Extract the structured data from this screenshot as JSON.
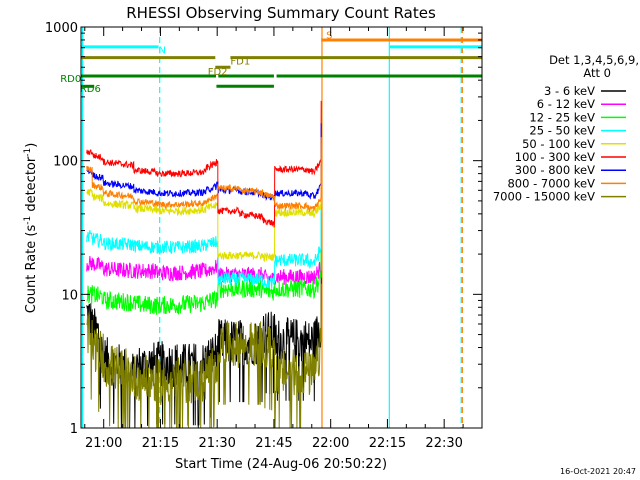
{
  "chart_data": {
    "type": "line",
    "title": "RHESSI Observing Summary Count Rates",
    "xlabel": "Start Time (24-Aug-06 20:50:22)",
    "ylabel_main": "Count Rate (s",
    "ylabel_sup1": "-1",
    "ylabel_mid": " detector",
    "ylabel_sup2": "-1",
    "ylabel_end": ")",
    "y_scale": "log",
    "ylim": [
      1,
      1000
    ],
    "xlim_minutes": [
      -6,
      100
    ],
    "y_ticks": [
      {
        "value": 1,
        "label": "1"
      },
      {
        "value": 10,
        "label": "10"
      },
      {
        "value": 100,
        "label": "100"
      },
      {
        "value": 1000,
        "label": "1000"
      }
    ],
    "x_ticks": [
      {
        "t": 0,
        "label": "21:00"
      },
      {
        "t": 15,
        "label": "21:15"
      },
      {
        "t": 30,
        "label": "21:30"
      },
      {
        "t": 45,
        "label": "21:45"
      },
      {
        "t": 60,
        "label": "22:00"
      },
      {
        "t": 75,
        "label": "22:15"
      },
      {
        "t": 90,
        "label": "22:30"
      }
    ],
    "legend_header": [
      "Det 1,3,4,5,6,9,",
      "Att 0"
    ],
    "timestamp": "16-Oct-2021 20:47",
    "series": [
      {
        "name": "3 - 6 keV",
        "color": "#000000",
        "segments": [
          [
            -4.5,
            7.3,
            6.0
          ],
          [
            -3,
            5.5,
            5.0
          ],
          [
            -1,
            4.0,
            3.5
          ],
          [
            0,
            3.3,
            2.5
          ],
          [
            8,
            2.8,
            3.0
          ],
          [
            14,
            3.0,
            3.0
          ],
          [
            20,
            2.9,
            3.0
          ],
          [
            27,
            3.2,
            3.6
          ],
          [
            29.8,
            3.2,
            3.6
          ],
          [
            30.2,
            4.4,
            4.4
          ],
          [
            42,
            5.2,
            5.0
          ],
          [
            44.8,
            5.2,
            5.0
          ],
          [
            45.2,
            4.5,
            4.5
          ],
          [
            54,
            4.3,
            4.5
          ],
          [
            56,
            4.6,
            6.0
          ],
          [
            57.5,
            15,
            15
          ]
        ],
        "noise": 0.35,
        "spike_to_floor": true
      },
      {
        "name": "6 - 12 keV",
        "color": "#ff00ff",
        "segments": [
          [
            -4.5,
            17,
            17
          ],
          [
            -3,
            17,
            16
          ],
          [
            0,
            15.5,
            15
          ],
          [
            8,
            15,
            15
          ],
          [
            14,
            14.5,
            14.5
          ],
          [
            20,
            14.5,
            15
          ],
          [
            27,
            15,
            16
          ],
          [
            29.8,
            16,
            16.5
          ],
          [
            30.2,
            14,
            14
          ],
          [
            42,
            13.5,
            13
          ],
          [
            44.8,
            13,
            13
          ],
          [
            45.2,
            13.5,
            13.5
          ],
          [
            54,
            13.5,
            13.5
          ],
          [
            56,
            14,
            16
          ],
          [
            57.5,
            40,
            40
          ]
        ],
        "noise": 0.12
      },
      {
        "name": "12 - 25 keV",
        "color": "#00ff00",
        "segments": [
          [
            -4.5,
            10,
            10
          ],
          [
            -3,
            10,
            9.5
          ],
          [
            0,
            9,
            8.7
          ],
          [
            8,
            8.5,
            8.2
          ],
          [
            14,
            8.3,
            8.3
          ],
          [
            20,
            8.4,
            8.6
          ],
          [
            27,
            8.8,
            9.2
          ],
          [
            29.8,
            9.2,
            9.5
          ],
          [
            30.2,
            11,
            11
          ],
          [
            42,
            10.5,
            10.5
          ],
          [
            44.8,
            10.5,
            10.5
          ],
          [
            45.2,
            11,
            11
          ],
          [
            54,
            11,
            11
          ],
          [
            56,
            11.5,
            13
          ],
          [
            57.5,
            55,
            55
          ]
        ],
        "noise": 0.14
      },
      {
        "name": "25 - 50 keV",
        "color": "#00ffff",
        "segments": [
          [
            -4.5,
            27,
            27
          ],
          [
            -3,
            26,
            25
          ],
          [
            0,
            24,
            23.5
          ],
          [
            8,
            23,
            22.5
          ],
          [
            14,
            22.5,
            22.5
          ],
          [
            20,
            22.5,
            23
          ],
          [
            27,
            23.5,
            24.5
          ],
          [
            29.8,
            24.5,
            25
          ],
          [
            30.2,
            13,
            13
          ],
          [
            42,
            12.5,
            12
          ],
          [
            44.8,
            12,
            12
          ],
          [
            45.2,
            18,
            18
          ],
          [
            54,
            17.5,
            17.5
          ],
          [
            56,
            18,
            22
          ],
          [
            57.5,
            90,
            90
          ]
        ],
        "noise": 0.1
      },
      {
        "name": "50 - 100 keV",
        "color": "#e0e000",
        "segments": [
          [
            -4.5,
            58,
            58
          ],
          [
            -3,
            54,
            52
          ],
          [
            0,
            48,
            46
          ],
          [
            8,
            44,
            43
          ],
          [
            14,
            42,
            42
          ],
          [
            20,
            42,
            43
          ],
          [
            27,
            44,
            46
          ],
          [
            29.8,
            46,
            47
          ],
          [
            30.2,
            19.5,
            19.5
          ],
          [
            42,
            19,
            19
          ],
          [
            44.8,
            19,
            19
          ],
          [
            45.2,
            41,
            41
          ],
          [
            54,
            40,
            40
          ],
          [
            56,
            41,
            46
          ],
          [
            57.5,
            130,
            130
          ]
        ],
        "noise": 0.06
      },
      {
        "name": "100 - 300 keV",
        "color": "#ff0000",
        "segments": [
          [
            -4.5,
            115,
            118
          ],
          [
            -3,
            110,
            105
          ],
          [
            0,
            98,
            92
          ],
          [
            8,
            85,
            82
          ],
          [
            14,
            80,
            80
          ],
          [
            20,
            80,
            82
          ],
          [
            27,
            88,
            96
          ],
          [
            29.8,
            100,
            103
          ],
          [
            30.2,
            42,
            42
          ],
          [
            36,
            40,
            38
          ],
          [
            42,
            36,
            34
          ],
          [
            44.8,
            34,
            33
          ],
          [
            45.2,
            86,
            86
          ],
          [
            54,
            84,
            82
          ],
          [
            56,
            85,
            100
          ],
          [
            57.5,
            280,
            280
          ]
        ],
        "noise": 0.05
      },
      {
        "name": "300 - 800 keV",
        "color": "#0000ff",
        "segments": [
          [
            -4.5,
            85,
            82
          ],
          [
            -3,
            78,
            74
          ],
          [
            0,
            68,
            64
          ],
          [
            8,
            60,
            58
          ],
          [
            14,
            57,
            57
          ],
          [
            20,
            57,
            58
          ],
          [
            27,
            60,
            64
          ],
          [
            29.8,
            66,
            68
          ],
          [
            30.2,
            60,
            60
          ],
          [
            36,
            59,
            57
          ],
          [
            42,
            55,
            53
          ],
          [
            44.8,
            53,
            52
          ],
          [
            45.2,
            57,
            57
          ],
          [
            54,
            55,
            54
          ],
          [
            56,
            56,
            65
          ],
          [
            57.5,
            190,
            190
          ]
        ],
        "noise": 0.05
      },
      {
        "name": "800 - 7000 keV",
        "color": "#ff8000",
        "segments": [
          [
            -4.5,
            88,
            85
          ],
          [
            -3,
            66,
            62
          ],
          [
            0,
            57,
            54
          ],
          [
            8,
            50,
            48
          ],
          [
            14,
            47,
            47
          ],
          [
            20,
            47,
            48
          ],
          [
            27,
            50,
            54
          ],
          [
            29.8,
            56,
            58
          ],
          [
            30.2,
            62,
            62
          ],
          [
            36,
            60,
            58
          ],
          [
            42,
            56,
            54
          ],
          [
            44.8,
            54,
            53
          ],
          [
            45.2,
            46,
            46
          ],
          [
            54,
            44,
            44
          ],
          [
            56,
            45,
            52
          ],
          [
            57.5,
            150,
            150
          ]
        ],
        "noise": 0.05
      },
      {
        "name": "7000 - 15000 keV",
        "color": "#808000",
        "segments": [
          [
            -4.5,
            5.0,
            4.5
          ],
          [
            -3,
            4.0,
            3.5
          ],
          [
            0,
            3.0,
            2.5
          ],
          [
            8,
            2.4,
            2.3
          ],
          [
            14,
            2.2,
            2.3
          ],
          [
            20,
            2.2,
            2.3
          ],
          [
            27,
            2.6,
            3.0
          ],
          [
            29.8,
            3.2,
            3.4
          ],
          [
            30.2,
            4.2,
            4.2
          ],
          [
            42,
            4.0,
            3.8
          ],
          [
            44.8,
            3.8,
            3.8
          ],
          [
            45.2,
            2.6,
            2.6
          ],
          [
            54,
            2.5,
            2.5
          ],
          [
            56,
            2.6,
            4.0
          ],
          [
            57.5,
            12,
            12
          ]
        ],
        "noise": 0.35,
        "spike_to_floor": true
      }
    ],
    "annotations": [
      {
        "text": "N",
        "color": "#00ffff",
        "t": 14.5,
        "y": 680
      },
      {
        "text": "S",
        "color": "#ff8000",
        "t": 58.8,
        "y": 880
      },
      {
        "text": "FD1",
        "color": "#808000",
        "t": 33.5,
        "y": 560
      },
      {
        "text": "FD2",
        "color": "#808000",
        "t": 27.5,
        "y": 470
      },
      {
        "text": "RD0",
        "color": "#008000",
        "t": -11.5,
        "y": 415
      },
      {
        "text": "RD6",
        "color": "#008000",
        "t": -6.3,
        "y": 350
      }
    ],
    "flag_bars": [
      {
        "color": "#00ffff",
        "y": 710,
        "spans": [
          [
            -6,
            14.5
          ],
          [
            75.5,
            100
          ]
        ]
      },
      {
        "color": "#ff8000",
        "y": 800,
        "spans": [
          [
            57.5,
            100
          ]
        ]
      },
      {
        "color": "#808000",
        "y": 590,
        "spans": [
          [
            -6,
            29.5
          ],
          [
            33.5,
            100
          ]
        ]
      },
      {
        "color": "#808000",
        "y": 500,
        "spans": [
          [
            29.5,
            33.5
          ]
        ]
      },
      {
        "color": "#008000",
        "y": 430,
        "spans": [
          [
            -6,
            100
          ]
        ],
        "gaps": [
          [
            29.7,
            30.3
          ],
          [
            45,
            45.7
          ]
        ]
      },
      {
        "color": "#008000",
        "y": 360,
        "spans": [
          [
            -6,
            -2.5
          ],
          [
            29.8,
            45
          ]
        ]
      }
    ],
    "vertical_lines": [
      {
        "color": "#00ffff",
        "t": -5.6,
        "dash": "none"
      },
      {
        "color": "#00ffff",
        "t": 14.8,
        "dash": "dash"
      },
      {
        "color": "#ff8000",
        "t": 57.7,
        "dash": "none"
      },
      {
        "color": "#00ffff",
        "t": 75.5,
        "dash": "none"
      },
      {
        "color": "#00ffff",
        "t": 94.5,
        "dash": "dash"
      },
      {
        "color": "#ff8000",
        "t": 94.8,
        "dash": "dash"
      }
    ]
  }
}
